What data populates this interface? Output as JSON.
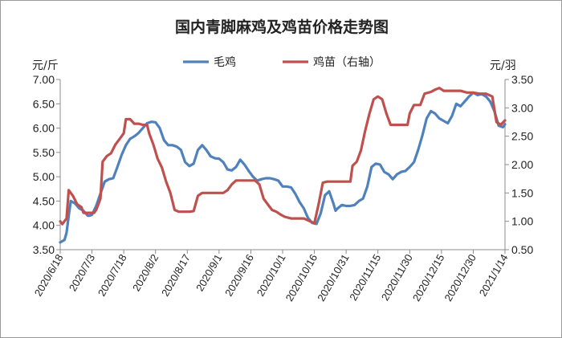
{
  "chart_data": {
    "type": "line",
    "title": "国内青脚麻鸡及鸡苗价格走势图",
    "y_left_unit": "元/斤",
    "y_right_unit": "元/羽",
    "ylim_left": [
      3.5,
      7.0
    ],
    "ylim_right": [
      0.5,
      3.5
    ],
    "y_left_ticks": [
      "3.50",
      "4.00",
      "4.50",
      "5.00",
      "5.50",
      "6.00",
      "6.50",
      "7.00"
    ],
    "y_right_ticks": [
      "0.50",
      "1.00",
      "1.50",
      "2.00",
      "2.50",
      "3.00",
      "3.50"
    ],
    "x_ticks": [
      "2020/6/18",
      "2020/7/3",
      "2020/7/18",
      "2020/8/2",
      "2020/8/17",
      "2020/9/1",
      "2020/9/16",
      "2020/10/1",
      "2020/10/16",
      "2020/10/31",
      "2020/11/15",
      "2020/11/30",
      "2020/12/15",
      "2020/12/30",
      "2021/1/14"
    ],
    "x_range": [
      "2020/6/18",
      "2021/1/14"
    ],
    "grid": false,
    "legend_position": "top",
    "series": [
      {
        "name": "毛鸡",
        "axis": "left",
        "color": "#4f81bd",
        "points": [
          [
            "2020/6/18",
            3.65
          ],
          [
            "2020/6/20",
            3.7
          ],
          [
            "2020/6/21",
            3.85
          ],
          [
            "2020/6/22",
            4.2
          ],
          [
            "2020/6/23",
            4.5
          ],
          [
            "2020/6/25",
            4.45
          ],
          [
            "2020/6/27",
            4.35
          ],
          [
            "2020/6/29",
            4.3
          ],
          [
            "2020/7/1",
            4.2
          ],
          [
            "2020/7/2",
            4.2
          ],
          [
            "2020/7/3",
            4.22
          ],
          [
            "2020/7/5",
            4.4
          ],
          [
            "2020/7/7",
            4.65
          ],
          [
            "2020/7/9",
            4.9
          ],
          [
            "2020/7/11",
            4.95
          ],
          [
            "2020/7/13",
            4.97
          ],
          [
            "2020/7/15",
            5.2
          ],
          [
            "2020/7/17",
            5.45
          ],
          [
            "2020/7/19",
            5.65
          ],
          [
            "2020/7/21",
            5.78
          ],
          [
            "2020/7/23",
            5.83
          ],
          [
            "2020/7/25",
            5.9
          ],
          [
            "2020/7/27",
            6.0
          ],
          [
            "2020/7/29",
            6.1
          ],
          [
            "2020/7/31",
            6.13
          ],
          [
            "2020/8/2",
            6.12
          ],
          [
            "2020/8/4",
            6.0
          ],
          [
            "2020/8/6",
            5.75
          ],
          [
            "2020/8/8",
            5.65
          ],
          [
            "2020/8/10",
            5.65
          ],
          [
            "2020/8/12",
            5.62
          ],
          [
            "2020/8/14",
            5.55
          ],
          [
            "2020/8/16",
            5.3
          ],
          [
            "2020/8/18",
            5.22
          ],
          [
            "2020/8/20",
            5.27
          ],
          [
            "2020/8/22",
            5.55
          ],
          [
            "2020/8/24",
            5.65
          ],
          [
            "2020/8/26",
            5.55
          ],
          [
            "2020/8/28",
            5.42
          ],
          [
            "2020/8/30",
            5.38
          ],
          [
            "2020/9/1",
            5.37
          ],
          [
            "2020/9/3",
            5.3
          ],
          [
            "2020/9/5",
            5.15
          ],
          [
            "2020/9/7",
            5.13
          ],
          [
            "2020/9/9",
            5.2
          ],
          [
            "2020/9/11",
            5.35
          ],
          [
            "2020/9/13",
            5.25
          ],
          [
            "2020/9/15",
            5.12
          ],
          [
            "2020/9/17",
            5.0
          ],
          [
            "2020/9/19",
            4.92
          ],
          [
            "2020/9/21",
            4.95
          ],
          [
            "2020/9/23",
            4.97
          ],
          [
            "2020/9/25",
            4.97
          ],
          [
            "2020/9/27",
            4.95
          ],
          [
            "2020/9/29",
            4.92
          ],
          [
            "2020/10/1",
            4.8
          ],
          [
            "2020/10/3",
            4.8
          ],
          [
            "2020/10/5",
            4.78
          ],
          [
            "2020/10/7",
            4.65
          ],
          [
            "2020/10/9",
            4.48
          ],
          [
            "2020/10/11",
            4.35
          ],
          [
            "2020/10/13",
            4.15
          ],
          [
            "2020/10/15",
            4.05
          ],
          [
            "2020/10/17",
            4.03
          ],
          [
            "2020/10/19",
            4.25
          ],
          [
            "2020/10/21",
            4.62
          ],
          [
            "2020/10/23",
            4.7
          ],
          [
            "2020/10/25",
            4.45
          ],
          [
            "2020/10/26",
            4.3
          ],
          [
            "2020/10/27",
            4.35
          ],
          [
            "2020/10/29",
            4.42
          ],
          [
            "2020/10/31",
            4.4
          ],
          [
            "2020/11/2",
            4.4
          ],
          [
            "2020/11/4",
            4.42
          ],
          [
            "2020/11/6",
            4.5
          ],
          [
            "2020/11/8",
            4.55
          ],
          [
            "2020/11/10",
            4.8
          ],
          [
            "2020/11/12",
            5.2
          ],
          [
            "2020/11/14",
            5.27
          ],
          [
            "2020/11/16",
            5.25
          ],
          [
            "2020/11/18",
            5.1
          ],
          [
            "2020/11/20",
            5.05
          ],
          [
            "2020/11/22",
            4.95
          ],
          [
            "2020/11/24",
            5.05
          ],
          [
            "2020/11/26",
            5.1
          ],
          [
            "2020/11/28",
            5.12
          ],
          [
            "2020/11/30",
            5.2
          ],
          [
            "2020/12/2",
            5.3
          ],
          [
            "2020/12/4",
            5.55
          ],
          [
            "2020/12/6",
            5.85
          ],
          [
            "2020/12/8",
            6.2
          ],
          [
            "2020/12/10",
            6.35
          ],
          [
            "2020/12/12",
            6.3
          ],
          [
            "2020/12/14",
            6.2
          ],
          [
            "2020/12/16",
            6.15
          ],
          [
            "2020/12/18",
            6.1
          ],
          [
            "2020/12/20",
            6.25
          ],
          [
            "2020/12/22",
            6.5
          ],
          [
            "2020/12/24",
            6.45
          ],
          [
            "2020/12/26",
            6.55
          ],
          [
            "2020/12/28",
            6.65
          ],
          [
            "2020/12/30",
            6.73
          ],
          [
            "2021/1/1",
            6.68
          ],
          [
            "2021/1/3",
            6.7
          ],
          [
            "2021/1/5",
            6.65
          ],
          [
            "2021/1/7",
            6.55
          ],
          [
            "2021/1/9",
            6.35
          ],
          [
            "2021/1/11",
            6.05
          ],
          [
            "2021/1/13",
            6.02
          ],
          [
            "2021/1/14",
            6.08
          ]
        ]
      },
      {
        "name": "鸡苗（右轴）",
        "axis": "right",
        "color": "#c0504d",
        "points": [
          [
            "2020/6/18",
            1.0
          ],
          [
            "2020/6/19",
            0.95
          ],
          [
            "2020/6/21",
            1.05
          ],
          [
            "2020/6/22",
            1.55
          ],
          [
            "2020/6/24",
            1.45
          ],
          [
            "2020/6/26",
            1.3
          ],
          [
            "2020/6/28",
            1.25
          ],
          [
            "2020/6/29",
            1.15
          ],
          [
            "2020/7/1",
            1.15
          ],
          [
            "2020/7/4",
            1.15
          ],
          [
            "2020/7/5",
            1.2
          ],
          [
            "2020/7/7",
            1.4
          ],
          [
            "2020/7/8",
            2.05
          ],
          [
            "2020/7/10",
            2.15
          ],
          [
            "2020/7/12",
            2.2
          ],
          [
            "2020/7/14",
            2.35
          ],
          [
            "2020/7/16",
            2.45
          ],
          [
            "2020/7/18",
            2.55
          ],
          [
            "2020/7/19",
            2.8
          ],
          [
            "2020/7/21",
            2.8
          ],
          [
            "2020/7/23",
            2.72
          ],
          [
            "2020/7/25",
            2.72
          ],
          [
            "2020/7/27",
            2.7
          ],
          [
            "2020/7/29",
            2.7
          ],
          [
            "2020/7/30",
            2.55
          ],
          [
            "2020/8/1",
            2.35
          ],
          [
            "2020/8/3",
            2.1
          ],
          [
            "2020/8/5",
            1.95
          ],
          [
            "2020/8/7",
            1.7
          ],
          [
            "2020/8/9",
            1.5
          ],
          [
            "2020/8/11",
            1.2
          ],
          [
            "2020/8/13",
            1.17
          ],
          [
            "2020/8/16",
            1.17
          ],
          [
            "2020/8/18",
            1.17
          ],
          [
            "2020/8/20",
            1.18
          ],
          [
            "2020/8/22",
            1.45
          ],
          [
            "2020/8/24",
            1.5
          ],
          [
            "2020/8/26",
            1.5
          ],
          [
            "2020/8/28",
            1.5
          ],
          [
            "2020/8/31",
            1.5
          ],
          [
            "2020/9/3",
            1.5
          ],
          [
            "2020/9/5",
            1.55
          ],
          [
            "2020/9/7",
            1.65
          ],
          [
            "2020/9/9",
            1.72
          ],
          [
            "2020/9/12",
            1.72
          ],
          [
            "2020/9/15",
            1.72
          ],
          [
            "2020/9/18",
            1.72
          ],
          [
            "2020/9/20",
            1.65
          ],
          [
            "2020/9/22",
            1.4
          ],
          [
            "2020/9/24",
            1.3
          ],
          [
            "2020/9/26",
            1.2
          ],
          [
            "2020/9/28",
            1.17
          ],
          [
            "2020/9/30",
            1.12
          ],
          [
            "2020/10/2",
            1.08
          ],
          [
            "2020/10/5",
            1.05
          ],
          [
            "2020/10/8",
            1.05
          ],
          [
            "2020/10/11",
            1.05
          ],
          [
            "2020/10/14",
            1.0
          ],
          [
            "2020/10/16",
            0.97
          ],
          [
            "2020/10/18",
            1.3
          ],
          [
            "2020/10/20",
            1.68
          ],
          [
            "2020/10/22",
            1.7
          ],
          [
            "2020/10/25",
            1.7
          ],
          [
            "2020/10/28",
            1.7
          ],
          [
            "2020/10/31",
            1.7
          ],
          [
            "2020/11/2",
            1.7
          ],
          [
            "2020/11/3",
            1.98
          ],
          [
            "2020/11/5",
            2.05
          ],
          [
            "2020/11/7",
            2.25
          ],
          [
            "2020/11/9",
            2.6
          ],
          [
            "2020/11/11",
            2.9
          ],
          [
            "2020/11/13",
            3.15
          ],
          [
            "2020/11/15",
            3.2
          ],
          [
            "2020/11/17",
            3.15
          ],
          [
            "2020/11/19",
            2.9
          ],
          [
            "2020/11/21",
            2.7
          ],
          [
            "2020/11/24",
            2.7
          ],
          [
            "2020/11/27",
            2.7
          ],
          [
            "2020/11/29",
            2.7
          ],
          [
            "2020/11/30",
            2.9
          ],
          [
            "2020/12/2",
            3.05
          ],
          [
            "2020/12/5",
            3.05
          ],
          [
            "2020/12/7",
            3.25
          ],
          [
            "2020/12/10",
            3.28
          ],
          [
            "2020/12/12",
            3.32
          ],
          [
            "2020/12/14",
            3.35
          ],
          [
            "2020/12/16",
            3.3
          ],
          [
            "2020/12/19",
            3.3
          ],
          [
            "2020/12/22",
            3.3
          ],
          [
            "2020/12/24",
            3.3
          ],
          [
            "2020/12/27",
            3.27
          ],
          [
            "2020/12/30",
            3.27
          ],
          [
            "2021/1/2",
            3.25
          ],
          [
            "2021/1/5",
            3.25
          ],
          [
            "2021/1/8",
            3.2
          ],
          [
            "2021/1/10",
            2.75
          ],
          [
            "2021/1/12",
            2.7
          ],
          [
            "2021/1/14",
            2.78
          ]
        ]
      }
    ]
  }
}
